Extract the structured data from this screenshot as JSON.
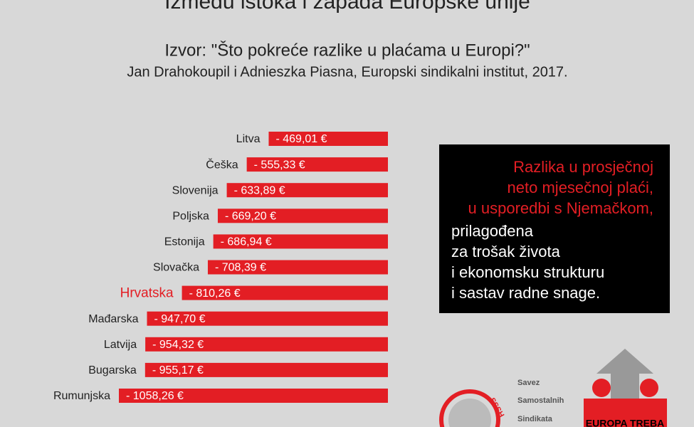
{
  "chart_data": {
    "type": "bar",
    "title": "Između istoka i zapada Europske unije",
    "subtitle": "Izvor: \"Što pokreće razlike u plaćama u Europi?\"",
    "source": "Jan Drahokoupil i Adnieszka Piasna, Europski sindikalni institut, 2017.",
    "categories": [
      "Litva",
      "Češka",
      "Slovenija",
      "Poljska",
      "Estonija",
      "Slovačka",
      "Hrvatska",
      "Mađarska",
      "Latvija",
      "Bugarska",
      "Rumunjska"
    ],
    "values": [
      -469.01,
      -555.33,
      -633.89,
      -669.2,
      -686.94,
      -708.39,
      -810.26,
      -947.7,
      -954.32,
      -955.17,
      -1058.26
    ],
    "value_labels": [
      "- 469,01 €",
      "- 555,33 €",
      "- 633,89 €",
      "- 669,20 €",
      "- 686,94 €",
      "- 708,39 €",
      "- 810,26 €",
      "- 947,70 €",
      "- 954,32 €",
      "- 955,17 €",
      "- 1058,26 €"
    ],
    "color": "#e31e24",
    "label_colors": [
      "#222222",
      "#222222",
      "#222222",
      "#222222",
      "#222222",
      "#222222",
      "#e31e24",
      "#222222",
      "#222222",
      "#222222",
      "#222222"
    ],
    "box": {
      "red_lines": [
        "Razlika u prosječnoj",
        "neto mjesečnoj plaći,",
        "u usporedbi s Njemačkom,"
      ],
      "white_lines": [
        "prilagođena",
        "za trošak života",
        "i ekonomsku strukturu",
        "i sastav radne snage."
      ]
    }
  },
  "logos": {
    "sssh": "SSSH",
    "union": [
      "Savez",
      "Samostalnih",
      "Sindikata"
    ],
    "campaign": "EUROPA TREBA"
  }
}
